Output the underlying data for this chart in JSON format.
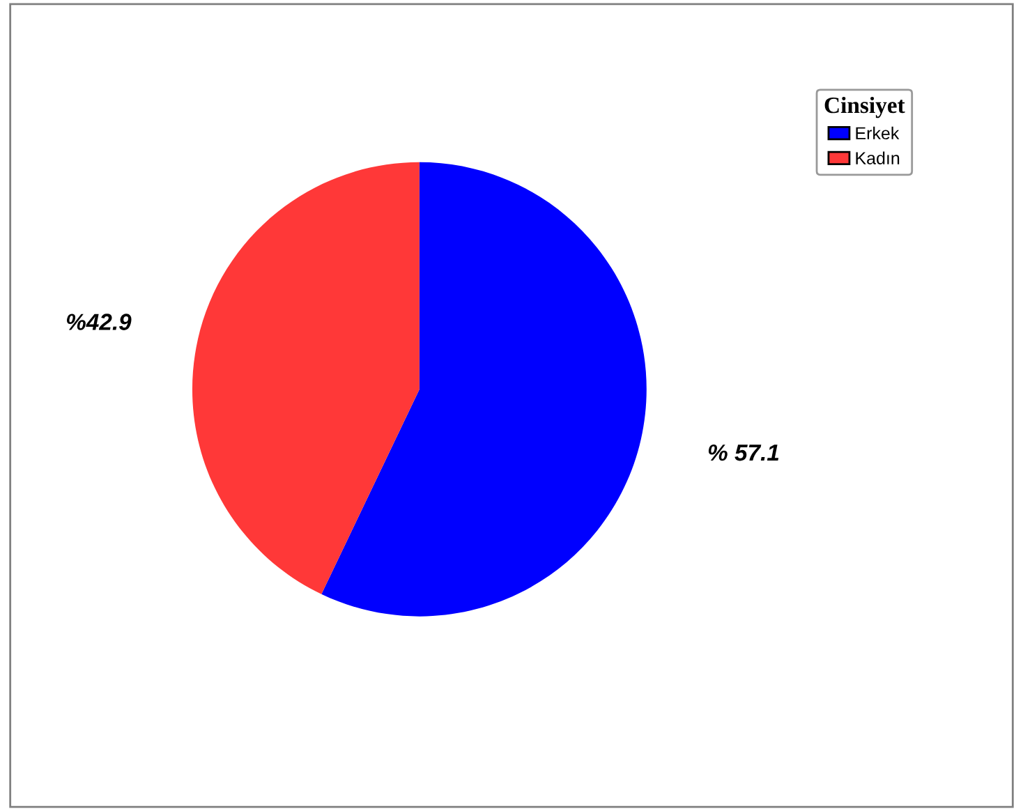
{
  "chart_data": {
    "type": "pie",
    "categories": [
      "Erkek",
      "Kadın"
    ],
    "values": [
      57.1,
      42.9
    ],
    "colors": [
      "#0000ff",
      "#ff3838"
    ],
    "value_labels": [
      "% 57.1",
      "%42.9"
    ],
    "legend_title": "Cinsiyet",
    "legend": "top right"
  }
}
